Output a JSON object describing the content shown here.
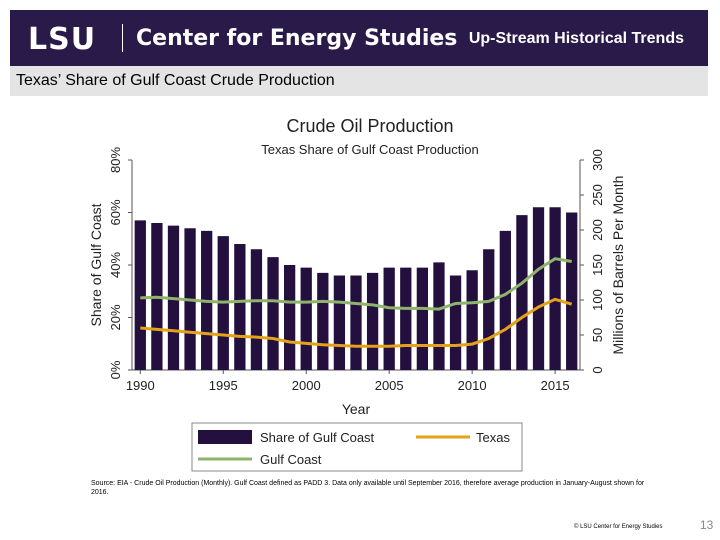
{
  "header": {
    "logo": "LSU",
    "center_name": "Center for Energy Studies",
    "title": "Up-Stream Historical Trends"
  },
  "subtitle": "Texas’ Share of Gulf Coast Crude Production",
  "footer": {
    "source": "Source: EIA - Crude Oil Production (Monthly). Gulf Coast defined as PADD 3. Data only available until September 2016, therefore average production in January-August shown for 2016.",
    "copyright": "© LSU Center for Energy Studies",
    "page_number": "13"
  },
  "colors": {
    "header_bg": "#2a1a49",
    "bar": "#24103f",
    "texas_line": "#e3a21a",
    "gulf_line": "#8fb36b",
    "subtitle_bg": "#e4e4e4"
  },
  "chart_data": {
    "type": "bar",
    "title": "Crude Oil Production",
    "subtitle": "Texas Share of Gulf Coast Production",
    "xlabel": "Year",
    "ylabel_left": "Share of Gulf Coast",
    "ylabel_right": "Millions of Barrels Per Month",
    "x": [
      1990,
      1991,
      1992,
      1993,
      1994,
      1995,
      1996,
      1997,
      1998,
      1999,
      2000,
      2001,
      2002,
      2003,
      2004,
      2005,
      2006,
      2007,
      2008,
      2009,
      2010,
      2011,
      2012,
      2013,
      2014,
      2015,
      2016
    ],
    "x_ticks": [
      "1990",
      "1995",
      "2000",
      "2005",
      "2010",
      "2015"
    ],
    "ylim_left": [
      0,
      80
    ],
    "yticks_left": [
      "0%",
      "20%",
      "40%",
      "60%",
      "80%"
    ],
    "ylim_right": [
      0,
      300
    ],
    "yticks_right": [
      "0",
      "50",
      "100",
      "150",
      "200",
      "250",
      "300"
    ],
    "legend": [
      "Share of Gulf Coast",
      "Texas",
      "Gulf Coast"
    ],
    "legend_position": "bottom",
    "series": [
      {
        "name": "Share of Gulf Coast",
        "type": "bar",
        "axis": "left",
        "values": [
          57,
          56,
          55,
          54,
          53,
          51,
          48,
          46,
          43,
          40,
          39,
          37,
          36,
          36,
          37,
          39,
          39,
          39,
          41,
          36,
          38,
          46,
          53,
          59,
          62,
          62,
          60
        ]
      },
      {
        "name": "Gulf Coast",
        "type": "line",
        "axis": "right",
        "values": [
          103,
          104,
          102,
          100,
          98,
          97,
          98,
          99,
          99,
          97,
          97,
          98,
          97,
          95,
          93,
          89,
          88,
          88,
          87,
          95,
          96,
          98,
          108,
          124,
          144,
          159,
          155
        ]
      },
      {
        "name": "Texas",
        "type": "line",
        "axis": "right",
        "values": [
          60,
          58,
          56,
          54,
          52,
          50,
          48,
          47,
          45,
          40,
          38,
          36,
          35,
          34,
          34,
          34,
          35,
          35,
          35,
          35,
          37,
          45,
          58,
          75,
          90,
          101,
          94
        ]
      }
    ],
    "grid": false
  }
}
